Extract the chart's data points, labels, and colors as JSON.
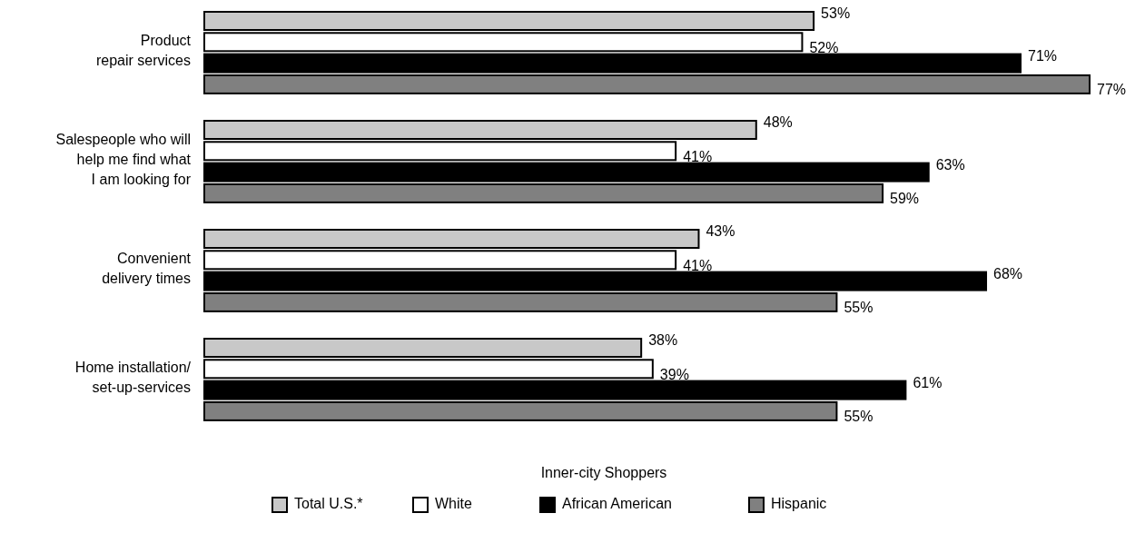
{
  "chart_data": {
    "type": "bar",
    "orientation": "horizontal",
    "categories": [
      "Product\nrepair services",
      "Salespeople who will\nhelp me find what\nI am looking for",
      "Convenient\ndelivery times",
      "Home installation/\nset-up-services"
    ],
    "series": [
      {
        "name": "Total U.S.*",
        "color": "#c8c8c8",
        "values": [
          53,
          48,
          43,
          38
        ],
        "value_labels": [
          "53%",
          "48%",
          "43%",
          "38%"
        ]
      },
      {
        "name": "White",
        "color": "#ffffff",
        "values": [
          52,
          41,
          41,
          39
        ],
        "value_labels": [
          "52%",
          "41%",
          "41%",
          "39%"
        ]
      },
      {
        "name": "African American",
        "color": "#000000",
        "values": [
          71,
          63,
          68,
          61
        ],
        "value_labels": [
          "71%",
          "63%",
          "68%",
          "61%"
        ]
      },
      {
        "name": "Hispanic",
        "color": "#808080",
        "values": [
          77,
          59,
          55,
          55
        ],
        "value_labels": [
          "77%",
          "59%",
          "55%",
          "55%"
        ]
      }
    ],
    "legend": "bottom",
    "legend_title": "Inner-city Shoppers"
  }
}
